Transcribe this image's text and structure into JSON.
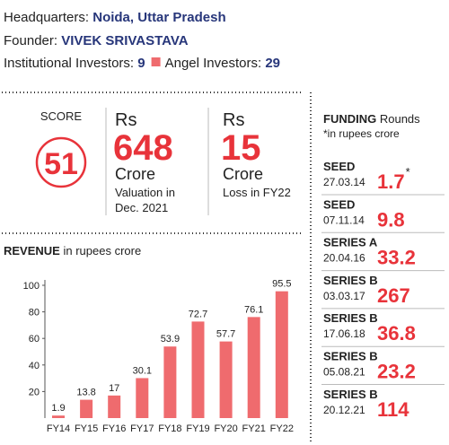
{
  "header": {
    "hq_label": "Headquarters:",
    "hq": "Noida, Uttar Pradesh",
    "founder_label": "Founder:",
    "founder": "VIVEK SRIVASTAVA",
    "inst_label": "Institutional Investors:",
    "inst": 9,
    "angel_label": "Angel Investors:",
    "angel": 29
  },
  "score": {
    "label": "SCORE",
    "value": 51
  },
  "valuation": {
    "currency": "Rs",
    "value": 648,
    "unit": "Crore",
    "note": [
      "Valuation in",
      "Dec. 2021"
    ]
  },
  "loss": {
    "currency": "Rs",
    "value": 15,
    "unit": "Crore",
    "note": [
      "Loss in FY22"
    ]
  },
  "funding": {
    "title": "FUNDING",
    "title_rest": "Rounds",
    "subtitle": "*in rupees crore",
    "rounds": [
      {
        "stage": "SEED",
        "date": "27.03.14",
        "amount": 1.7,
        "mark": "*"
      },
      {
        "stage": "SEED",
        "date": "07.11.14",
        "amount": 9.8
      },
      {
        "stage": "SERIES A",
        "date": "20.04.16",
        "amount": 33.2
      },
      {
        "stage": "SERIES B",
        "date": "03.03.17",
        "amount": 267
      },
      {
        "stage": "SERIES B",
        "date": "17.06.18",
        "amount": 36.8
      },
      {
        "stage": "SERIES B",
        "date": "05.08.21",
        "amount": 23.2
      },
      {
        "stage": "SERIES B",
        "date": "20.12.21",
        "amount": 114
      }
    ]
  },
  "chart_data": {
    "type": "bar",
    "title": "REVENUE",
    "subtitle": "in rupees crore",
    "categories": [
      "FY14",
      "FY15",
      "FY16",
      "FY17",
      "FY18",
      "FY19",
      "FY20",
      "FY21",
      "FY22"
    ],
    "values": [
      1.9,
      13.8,
      17,
      30.1,
      53.9,
      72.7,
      57.7,
      76.1,
      95.5
    ],
    "color": "#ef6b6e",
    "ylim": [
      0,
      100
    ],
    "yticks": [
      20,
      40,
      60,
      80,
      100
    ]
  }
}
